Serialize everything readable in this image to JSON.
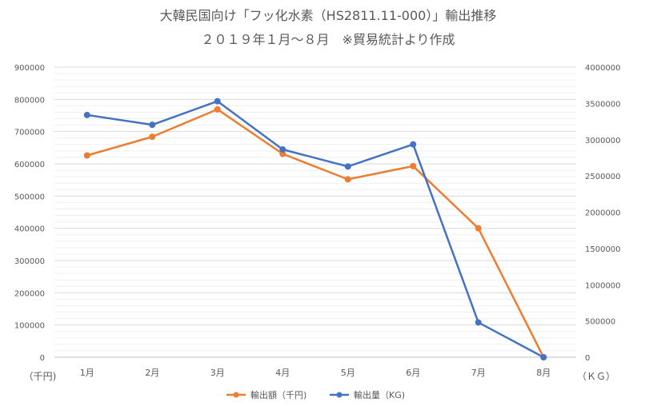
{
  "chart_data": {
    "type": "line",
    "title": "大韓民国向け「フッ化水素（HS2811.11-000）」輸出推移",
    "subtitle": "２０１９年１月～８月　※貿易統計より作成",
    "categories": [
      "1月",
      "2月",
      "3月",
      "4月",
      "5月",
      "6月",
      "7月",
      "8月"
    ],
    "series": [
      {
        "name": "輸出額（千円)",
        "axis": "left",
        "color": "#ED7D31",
        "values": [
          626000,
          684000,
          769000,
          631000,
          552000,
          593000,
          400000,
          0
        ]
      },
      {
        "name": "輸出量（KG)",
        "axis": "right",
        "color": "#4472C4",
        "values": [
          3340000,
          3205000,
          3530000,
          2865000,
          2630000,
          2935000,
          480000,
          0
        ]
      }
    ],
    "y_left": {
      "unit_label": "（千円)",
      "ylim": [
        0,
        900000
      ],
      "ticks": [
        0,
        100000,
        200000,
        300000,
        400000,
        500000,
        600000,
        700000,
        800000,
        900000
      ]
    },
    "y_right": {
      "unit_label": "（ＫＧ）",
      "ylim": [
        0,
        4000000
      ],
      "ticks": [
        0,
        500000,
        1000000,
        1500000,
        2000000,
        2500000,
        3000000,
        3500000,
        4000000
      ]
    },
    "grid": true,
    "legend_position": "bottom"
  }
}
